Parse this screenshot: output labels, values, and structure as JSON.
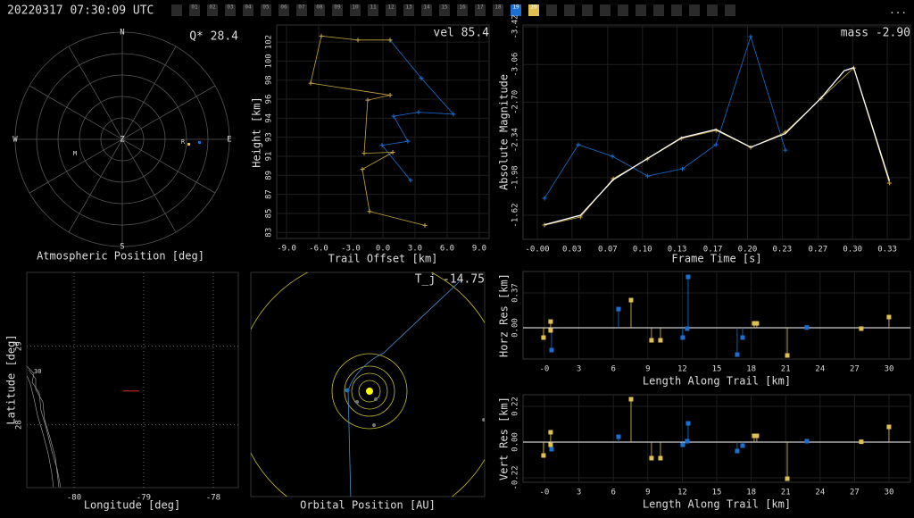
{
  "header": {
    "timestamp": "20220317 07:30:09 UTC",
    "cameras": [
      "01",
      "02",
      "03",
      "04",
      "05",
      "06",
      "07",
      "08",
      "09",
      "10",
      "11",
      "12",
      "13",
      "14",
      "15",
      "16",
      "17",
      "18",
      "19",
      "20"
    ],
    "active": {
      "18": "#1a6fd1",
      "19": "#e0c050"
    },
    "menu": "..."
  },
  "polar": {
    "title": "Atmospheric Position [deg]",
    "annotation": "Q* 28.4",
    "north": "N",
    "south": "S",
    "east": "E",
    "west": "W",
    "zenith": "Z",
    "markers": [
      "R",
      "M"
    ]
  },
  "trail": {
    "xlabel": "Trail Offset [km]",
    "ylabel": "Height [km]",
    "annotation": "vel 85.4",
    "grid": true,
    "xlim": [
      -9.92,
      9.92
    ],
    "ylim": [
      82.4,
      103.7
    ],
    "xticks": [
      {
        "value": -9,
        "label": "-9.0"
      },
      {
        "value": -6,
        "label": "-6.0"
      },
      {
        "value": -3,
        "label": "-3.0"
      },
      {
        "value": 0,
        "label": "0.0"
      },
      {
        "value": 3,
        "label": "3.0"
      },
      {
        "value": 6,
        "label": "6.0"
      },
      {
        "value": 9,
        "label": "9.0"
      }
    ],
    "yticks": [
      83,
      {
        "value": 84.9,
        "label": "85"
      },
      {
        "value": 86.8,
        "label": "87"
      },
      {
        "value": 88.7,
        "label": "89"
      },
      {
        "value": 90.6,
        "label": "91"
      },
      {
        "value": 92.5,
        "label": "93"
      },
      {
        "value": 94.4,
        "label": "94"
      },
      {
        "value": 96.3,
        "label": "96"
      },
      {
        "value": 98.2,
        "label": "98"
      },
      {
        "value": 100.1,
        "label": "100"
      },
      102
    ],
    "series": [
      {
        "color": "#1a6fd1",
        "style": "line+plus",
        "x": [
          0.67,
          3.58,
          6.58,
          3.33,
          1.0,
          2.33,
          -0.08,
          2.58
        ],
        "values": [
          102.2,
          98.4,
          94.8,
          95.0,
          94.6,
          92.1,
          91.7,
          88.2
        ]
      },
      {
        "color": "#c8a840",
        "style": "line+plus",
        "x": [
          0.67,
          -2.33,
          -5.75,
          -6.75,
          0.67,
          -1.42,
          -1.75,
          0.92,
          -1.92,
          -1.25,
          3.92
        ],
        "values": [
          102.2,
          102.2,
          102.6,
          97.9,
          96.7,
          96.2,
          90.9,
          91.0,
          89.3,
          85.1,
          83.7
        ]
      }
    ]
  },
  "mag": {
    "xlabel": "Frame Time [s]",
    "ylabel": "Absolute Magnitude",
    "annotation": "mass -2.90",
    "grid": true,
    "xlim": [
      -0.0136,
      0.355
    ],
    "ylim": [
      -1.39,
      -3.437
    ],
    "xticks": [
      {
        "value": 0,
        "label": "-0.00"
      },
      {
        "value": 0.033,
        "label": "0.03"
      },
      {
        "value": 0.067,
        "label": "0.07"
      },
      {
        "value": 0.1,
        "label": "0.10"
      },
      {
        "value": 0.133,
        "label": "0.13"
      },
      {
        "value": 0.167,
        "label": "0.17"
      },
      {
        "value": 0.2,
        "label": "0.20"
      },
      {
        "value": 0.233,
        "label": "0.23"
      },
      {
        "value": 0.267,
        "label": "0.27"
      },
      {
        "value": 0.3,
        "label": "0.30"
      },
      {
        "value": 0.333,
        "label": "0.33"
      }
    ],
    "yticks": [
      -3.42,
      {
        "value": -3.06,
        "label": "-3.06"
      },
      {
        "value": -2.7,
        "label": "-2.70"
      },
      -2.34,
      -1.98,
      -1.62
    ],
    "series": [
      {
        "color": "#1a6fd1",
        "style": "line+plus",
        "x": [
          0.0068,
          0.039,
          0.0714,
          0.105,
          0.138,
          0.17,
          0.203,
          0.236
        ],
        "values": [
          -1.782,
          -2.294,
          -2.183,
          -1.995,
          -2.063,
          -2.294,
          -3.326,
          -2.242
        ]
      },
      {
        "color": "#c8a840",
        "style": "line+plus",
        "x": [
          0.0068,
          0.041,
          0.0723,
          0.1046,
          0.137,
          0.17,
          0.203,
          0.236,
          0.27,
          0.301,
          0.335
        ],
        "values": [
          -1.526,
          -1.603,
          -1.97,
          -2.157,
          -2.353,
          -2.43,
          -2.268,
          -2.413,
          -2.737,
          -3.027,
          -1.927
        ]
      },
      {
        "color": "#ffffff",
        "style": "line",
        "x": [
          0.0068,
          0.041,
          0.0723,
          0.1046,
          0.137,
          0.17,
          0.203,
          0.236,
          0.27,
          0.292,
          0.301,
          0.335
        ],
        "values": [
          -1.53,
          -1.62,
          -1.96,
          -2.16,
          -2.36,
          -2.44,
          -2.27,
          -2.4,
          -2.74,
          -3.0,
          -3.03,
          -1.95
        ]
      }
    ]
  },
  "horz": {
    "xlabel": "Length Along Trail [km]",
    "ylabel": "Horz Res [km]",
    "grid": true,
    "baseline": true,
    "xlim": [
      -1.86,
      31.86
    ],
    "ylim": [
      -0.332,
      0.598
    ],
    "xticks": [
      {
        "value": 0,
        "label": "-0"
      },
      3,
      6,
      9,
      12,
      15,
      18,
      21,
      24,
      27,
      30
    ],
    "yticks": [
      {
        "value": 0,
        "label": "0.00"
      },
      0.37
    ],
    "series": [
      {
        "color": "#1a6fd1",
        "style": "stems",
        "x": [
          0.62,
          6.45,
          12.04,
          12.43,
          12.51,
          16.78,
          17.25,
          22.84
        ],
        "values": [
          -0.237,
          0.199,
          -0.104,
          -0.009,
          0.541,
          -0.285,
          -0.104,
          0.003
        ]
      },
      {
        "color": "#e0c050",
        "style": "stems",
        "x": [
          -0.08,
          0.54,
          0.54,
          7.54,
          9.32,
          10.1,
          18.26,
          18.49,
          21.14,
          27.58,
          29.99
        ],
        "values": [
          -0.104,
          0.066,
          -0.028,
          0.294,
          -0.133,
          -0.133,
          0.047,
          0.047,
          -0.294,
          -0.009,
          0.114
        ]
      }
    ]
  },
  "vert": {
    "xlabel": "Length Along Trail [km]",
    "ylabel": "Vert Res [km]",
    "grid": true,
    "baseline": true,
    "xlim": [
      -1.86,
      31.86
    ],
    "ylim": [
      -0.2475,
      0.2915
    ],
    "xticks": [
      {
        "value": 0,
        "label": "-0"
      },
      3,
      6,
      9,
      12,
      15,
      18,
      21,
      24,
      27,
      30
    ],
    "yticks": [
      -0.22,
      {
        "value": 0,
        "label": "0.00"
      },
      0.22
    ],
    "series": [
      {
        "color": "#1a6fd1",
        "style": "stems",
        "x": [
          0.62,
          6.45,
          12.04,
          12.43,
          12.51,
          16.78,
          17.25,
          22.84
        ],
        "values": [
          -0.044,
          0.033,
          -0.0165,
          0.0055,
          0.1155,
          -0.055,
          -0.022,
          0.0055
        ]
      },
      {
        "color": "#e0c050",
        "style": "stems",
        "x": [
          -0.08,
          0.54,
          0.54,
          7.54,
          9.32,
          10.1,
          18.26,
          18.49,
          21.14,
          27.58,
          29.99
        ],
        "values": [
          -0.0825,
          0.0605,
          -0.0165,
          0.264,
          -0.099,
          -0.099,
          0.0385,
          0.0385,
          -0.2255,
          0.002,
          0.0935
        ]
      }
    ]
  },
  "map": {
    "xlabel": "Longitude [deg]",
    "ylabel": "Latitude [deg]",
    "station_label": "30",
    "grid": true,
    "xlim": [
      -80.68,
      -77.64
    ],
    "ylim": [
      27.2,
      29.94
    ],
    "xticks": [
      -80,
      -79,
      -78
    ],
    "yticks": [
      28,
      29
    ],
    "series": [
      {
        "color": "#ff3030",
        "style": "line",
        "x": [
          -79.295,
          -79.064
        ],
        "values": [
          28.43,
          28.43
        ]
      }
    ]
  },
  "orbit": {
    "xlabel": "Orbital Position [AU]",
    "annotation": "T_j -14.75"
  }
}
